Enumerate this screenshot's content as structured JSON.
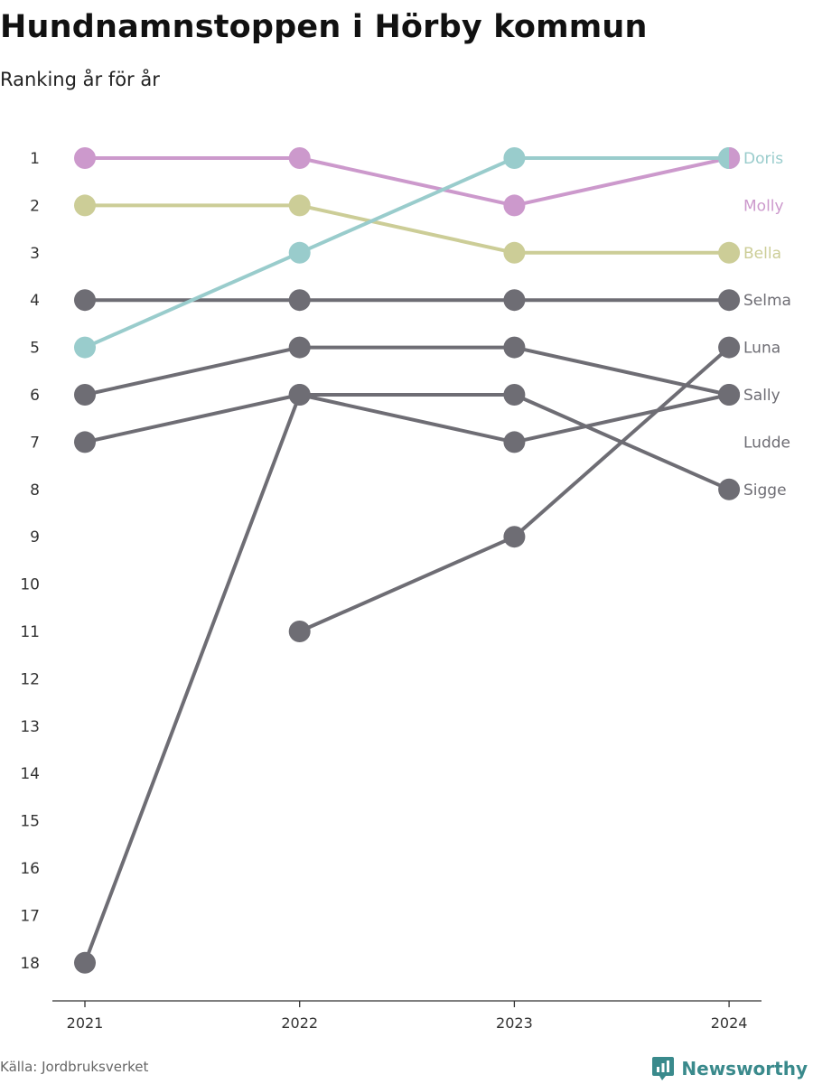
{
  "title": "Hundnamnstoppen i Hörby kommun",
  "subtitle": "Ranking år för år",
  "source": "Källa: Jordbruksverket",
  "brand": {
    "name": "Newsworthy",
    "icon": "newsworthy-logo-icon",
    "color": "#3a8a8c"
  },
  "chart_data": {
    "type": "line",
    "x": [
      "2021",
      "2022",
      "2023",
      "2024"
    ],
    "y_ticks": [
      1,
      2,
      3,
      4,
      5,
      6,
      7,
      8,
      9,
      10,
      11,
      12,
      13,
      14,
      15,
      16,
      17,
      18
    ],
    "ylim": [
      1,
      18
    ],
    "y_reversed": true,
    "grid": false,
    "legend": "end-labels",
    "series": [
      {
        "name": "Selma",
        "color": "#6e6d74",
        "values": [
          4,
          4,
          4,
          4
        ]
      },
      {
        "name": "Luna",
        "color": "#6e6d74",
        "values": [
          null,
          11,
          9,
          5
        ]
      },
      {
        "name": "Sally",
        "color": "#6e6d74",
        "values": [
          7,
          6,
          7,
          6
        ]
      },
      {
        "name": "Ludde",
        "color": "#6e6d74",
        "values": [
          6,
          5,
          5,
          6
        ]
      },
      {
        "name": "Sigge",
        "color": "#6e6d74",
        "values": [
          18,
          6,
          6,
          8
        ]
      },
      {
        "name": "Bella",
        "color": "#cccd97",
        "values": [
          2,
          2,
          3,
          3
        ]
      },
      {
        "name": "Molly",
        "color": "#cc99cc",
        "values": [
          1,
          1,
          2,
          1
        ]
      },
      {
        "name": "Doris",
        "color": "#99cccc",
        "values": [
          5,
          3,
          1,
          1
        ]
      }
    ],
    "labels": [
      {
        "name": "Doris",
        "color": "#99cccc",
        "rank": 1
      },
      {
        "name": "Molly",
        "color": "#cc99cc",
        "rank": 2
      },
      {
        "name": "Bella",
        "color": "#cccd97",
        "rank": 3
      },
      {
        "name": "Selma",
        "color": "#6e6d74",
        "rank": 4
      },
      {
        "name": "Luna",
        "color": "#6e6d74",
        "rank": 5
      },
      {
        "name": "Sally",
        "color": "#6e6d74",
        "rank": 6
      },
      {
        "name": "Ludde",
        "color": "#6e6d74",
        "rank": 7
      },
      {
        "name": "Sigge",
        "color": "#6e6d74",
        "rank": 8
      }
    ]
  }
}
